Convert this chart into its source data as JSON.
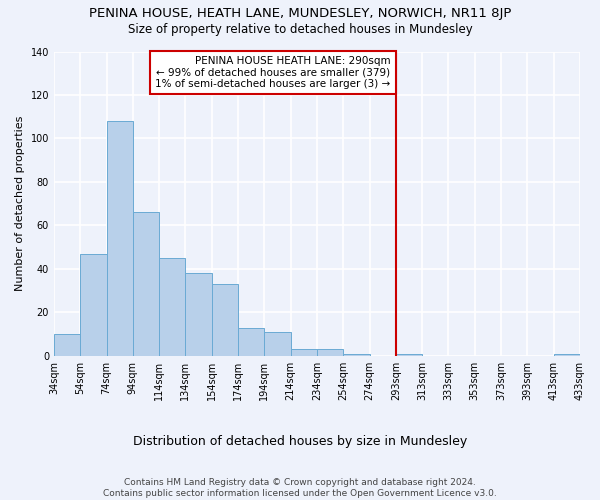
{
  "title": "PENINA HOUSE, HEATH LANE, MUNDESLEY, NORWICH, NR11 8JP",
  "subtitle": "Size of property relative to detached houses in Mundesley",
  "xlabel": "Distribution of detached houses by size in Mundesley",
  "ylabel": "Number of detached properties",
  "bar_values": [
    10,
    47,
    108,
    66,
    45,
    38,
    33,
    13,
    11,
    3,
    3,
    1,
    0,
    1,
    0,
    0,
    0,
    0,
    0,
    1
  ],
  "x_labels": [
    "34sqm",
    "54sqm",
    "74sqm",
    "94sqm",
    "114sqm",
    "134sqm",
    "154sqm",
    "174sqm",
    "194sqm",
    "214sqm",
    "234sqm",
    "254sqm",
    "274sqm",
    "293sqm",
    "313sqm",
    "333sqm",
    "353sqm",
    "373sqm",
    "393sqm",
    "413sqm",
    "433sqm"
  ],
  "bar_color": "#b8d0ea",
  "bar_edge_color": "#6aaad4",
  "background_color": "#eef2fb",
  "grid_color": "#ffffff",
  "vline_color": "#cc0000",
  "annotation_text": "PENINA HOUSE HEATH LANE: 290sqm\n← 99% of detached houses are smaller (379)\n1% of semi-detached houses are larger (3) →",
  "annotation_box_color": "#ffffff",
  "annotation_box_edge_color": "#cc0000",
  "footer_text": "Contains HM Land Registry data © Crown copyright and database right 2024.\nContains public sector information licensed under the Open Government Licence v3.0.",
  "ylim": [
    0,
    140
  ],
  "yticks": [
    0,
    20,
    40,
    60,
    80,
    100,
    120,
    140
  ],
  "title_fontsize": 9.5,
  "subtitle_fontsize": 8.5,
  "ylabel_fontsize": 8,
  "xlabel_fontsize": 9,
  "tick_fontsize": 7,
  "footer_fontsize": 6.5,
  "annotation_fontsize": 7.5
}
